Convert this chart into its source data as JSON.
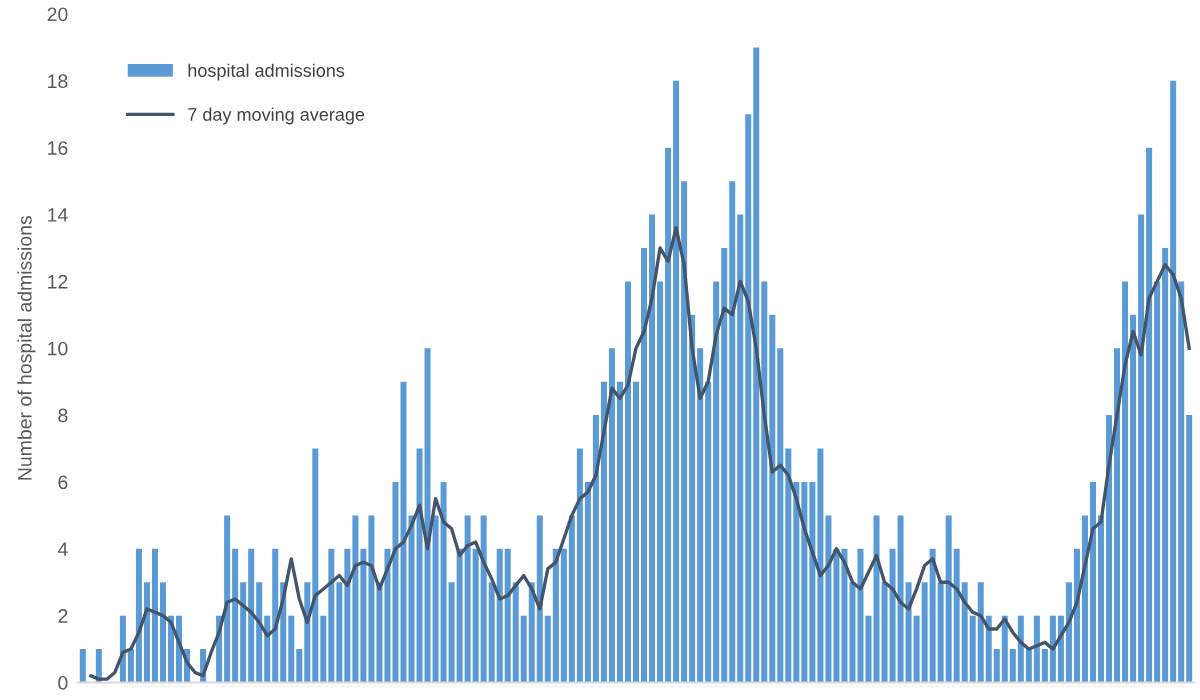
{
  "chart_data": {
    "type": "bar",
    "ylabel": "Number of hospital admissions",
    "categories": [
      null,
      null,
      null,
      null,
      null,
      null,
      null,
      null,
      null,
      null,
      null,
      null,
      null,
      null,
      null,
      null,
      null,
      null,
      null,
      null,
      null,
      null,
      null,
      null,
      null,
      null,
      null,
      null,
      null,
      null,
      null,
      null,
      null,
      null,
      null,
      null,
      null,
      null,
      null,
      null,
      null,
      null,
      null,
      null,
      null,
      null,
      null,
      null,
      null,
      null,
      null,
      null,
      null,
      null,
      null,
      null,
      null,
      null,
      null,
      null,
      null,
      null,
      null,
      null,
      null,
      null,
      null,
      null,
      null,
      null,
      null,
      null,
      null,
      null,
      null,
      null,
      null,
      null,
      null,
      null,
      null,
      null,
      null,
      null,
      null,
      null,
      null,
      null,
      null,
      null,
      null,
      null,
      null,
      null,
      null,
      null,
      null,
      null,
      null,
      null,
      null,
      null,
      null,
      null,
      null,
      null,
      null,
      null,
      null,
      null,
      null,
      null,
      null,
      null,
      null,
      null,
      null,
      null,
      null,
      null,
      null,
      null,
      null,
      null,
      null,
      null,
      null,
      null,
      null,
      null,
      null,
      null,
      null,
      null,
      null,
      null,
      null,
      null,
      null
    ],
    "series": [
      {
        "name": "hospital admissions",
        "color": "#5b9bd5",
        "values": [
          1,
          0,
          1,
          0,
          0,
          2,
          1,
          4,
          3,
          4,
          3,
          2,
          2,
          1,
          0,
          1,
          0,
          2,
          5,
          4,
          3,
          4,
          3,
          2,
          4,
          3,
          2,
          1,
          3,
          7,
          2,
          4,
          3,
          4,
          5,
          4,
          5,
          3,
          4,
          6,
          9,
          5,
          7,
          10,
          5,
          6,
          3,
          4,
          5,
          4,
          5,
          3,
          4,
          4,
          3,
          2,
          3,
          5,
          2,
          4,
          4,
          5,
          7,
          6,
          8,
          9,
          10,
          9,
          12,
          9,
          13,
          14,
          12,
          16,
          18,
          15,
          11,
          10,
          9,
          12,
          13,
          15,
          14,
          17,
          19,
          12,
          11,
          10,
          7,
          6,
          6,
          6,
          7,
          5,
          4,
          4,
          3,
          4,
          2,
          5,
          3,
          4,
          5,
          3,
          2,
          3,
          4,
          3,
          5,
          4,
          3,
          2,
          3,
          2,
          1,
          2,
          1,
          2,
          1,
          2,
          1,
          2,
          2,
          3,
          4,
          5,
          6,
          5,
          8,
          10,
          12,
          11,
          14,
          16,
          12,
          13,
          18,
          12,
          8
        ]
      },
      {
        "name": "7 day moving average",
        "type": "line",
        "color": "#44546a",
        "values": [
          null,
          0.2,
          0.1,
          0.1,
          0.3,
          0.9,
          1,
          1.5,
          2.2,
          2.1,
          2,
          1.8,
          1.2,
          0.6,
          0.3,
          0.2,
          0.9,
          1.5,
          2.4,
          2.5,
          2.3,
          2.1,
          1.8,
          1.4,
          1.6,
          2.5,
          3.7,
          2.5,
          1.8,
          2.6,
          2.8,
          3,
          3.2,
          2.9,
          3.5,
          3.6,
          3.5,
          2.8,
          3.4,
          4,
          4.2,
          4.7,
          5.3,
          4,
          5.5,
          4.8,
          4.6,
          3.8,
          4.1,
          4.2,
          3.6,
          3.1,
          2.5,
          2.6,
          2.9,
          3.2,
          2.8,
          2.2,
          3.4,
          3.6,
          4.3,
          5,
          5.5,
          5.7,
          6.2,
          7.5,
          8.8,
          8.5,
          8.9,
          10,
          10.5,
          11.5,
          13,
          12.6,
          13.6,
          12.5,
          10,
          8.5,
          9,
          10.4,
          11.2,
          11,
          12,
          11.4,
          10,
          8,
          6.3,
          6.5,
          6.2,
          5.5,
          4.6,
          3.9,
          3.2,
          3.5,
          4,
          3.6,
          3,
          2.8,
          3.3,
          3.8,
          3,
          2.8,
          2.4,
          2.2,
          2.8,
          3.5,
          3.7,
          3,
          3,
          2.8,
          2.4,
          2.1,
          2,
          1.6,
          1.6,
          1.9,
          1.5,
          1.2,
          1,
          1.1,
          1.2,
          1,
          1.4,
          1.8,
          2.4,
          3.5,
          4.6,
          4.8,
          6.5,
          8,
          9.5,
          10.5,
          9.8,
          11.5,
          12,
          12.5,
          12.2,
          11.5,
          10
        ]
      }
    ],
    "ylim": [
      0,
      20
    ],
    "yticks": [
      0,
      2,
      4,
      6,
      8,
      10,
      12,
      14,
      16,
      18,
      20
    ],
    "tick_labels": "y",
    "legend": "top left",
    "grid": false
  }
}
